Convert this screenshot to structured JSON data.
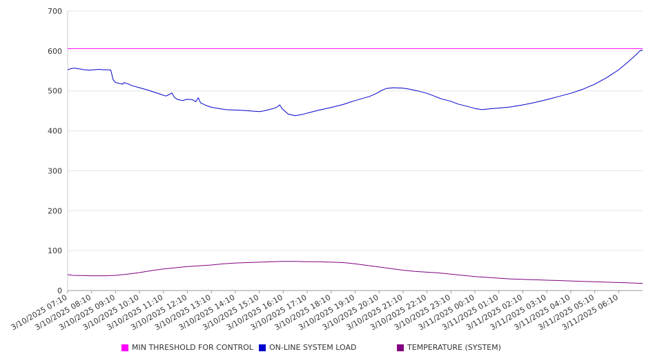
{
  "chart_data": {
    "type": "line",
    "title": "",
    "xlabel": "",
    "ylabel": "",
    "ylim": [
      0,
      700
    ],
    "yticks": [
      0,
      100,
      200,
      300,
      400,
      500,
      600,
      700
    ],
    "grid": true,
    "legend_position": "bottom",
    "x_tick_labels": [
      "3/10/2025 07:10",
      "3/10/2025 08:10",
      "3/10/2025 09:10",
      "3/10/2025 10:10",
      "3/10/2025 11:10",
      "3/10/2025 12:10",
      "3/10/2025 13:10",
      "3/10/2025 14:10",
      "3/10/2025 15:10",
      "3/10/2025 16:10",
      "3/10/2025 17:10",
      "3/10/2025 18:10",
      "3/10/2025 19:10",
      "3/10/2025 20:10",
      "3/10/2025 21:10",
      "3/10/2025 22:10",
      "3/10/2025 23:10",
      "3/11/2025 00:10",
      "3/11/2025 01:10",
      "3/11/2025 02:10",
      "3/11/2025 03:10",
      "3/11/2025 04:10",
      "3/11/2025 05:10",
      "3/11/2025 06:10"
    ],
    "x_range_hours": [
      0,
      24
    ],
    "series": [
      {
        "name": "MIN THRESHOLD FOR CONTROL",
        "color": "#ff00ff",
        "points": [
          [
            0,
            606
          ],
          [
            24,
            606
          ]
        ]
      },
      {
        "name": "ON-LINE SYSTEM LOAD",
        "color": "#0000cc",
        "points": [
          [
            0,
            553
          ],
          [
            0.15,
            556
          ],
          [
            0.3,
            557
          ],
          [
            0.5,
            555
          ],
          [
            0.7,
            553
          ],
          [
            0.9,
            552
          ],
          [
            1.1,
            553
          ],
          [
            1.3,
            554
          ],
          [
            1.5,
            553
          ],
          [
            1.7,
            553
          ],
          [
            1.8,
            552
          ],
          [
            1.85,
            540
          ],
          [
            1.9,
            528
          ],
          [
            2.0,
            521
          ],
          [
            2.2,
            518
          ],
          [
            2.3,
            517
          ],
          [
            2.35,
            521
          ],
          [
            2.5,
            518
          ],
          [
            2.7,
            513
          ],
          [
            3.0,
            508
          ],
          [
            3.3,
            503
          ],
          [
            3.6,
            497
          ],
          [
            3.9,
            491
          ],
          [
            4.1,
            487
          ],
          [
            4.2,
            490
          ],
          [
            4.3,
            493
          ],
          [
            4.35,
            495
          ],
          [
            4.45,
            484
          ],
          [
            4.6,
            478
          ],
          [
            4.8,
            476
          ],
          [
            5.0,
            479
          ],
          [
            5.2,
            478
          ],
          [
            5.35,
            473
          ],
          [
            5.45,
            483
          ],
          [
            5.55,
            470
          ],
          [
            5.8,
            463
          ],
          [
            6.0,
            459
          ],
          [
            6.3,
            456
          ],
          [
            6.6,
            453
          ],
          [
            7.0,
            452
          ],
          [
            7.4,
            451
          ],
          [
            7.8,
            449
          ],
          [
            8.0,
            448
          ],
          [
            8.2,
            450
          ],
          [
            8.4,
            453
          ],
          [
            8.6,
            456
          ],
          [
            8.75,
            460
          ],
          [
            8.85,
            465
          ],
          [
            8.95,
            456
          ],
          [
            9.2,
            442
          ],
          [
            9.5,
            438
          ],
          [
            9.8,
            441
          ],
          [
            10.1,
            446
          ],
          [
            10.5,
            452
          ],
          [
            10.8,
            456
          ],
          [
            11.1,
            460
          ],
          [
            11.5,
            466
          ],
          [
            11.9,
            474
          ],
          [
            12.3,
            481
          ],
          [
            12.6,
            486
          ],
          [
            12.9,
            494
          ],
          [
            13.1,
            501
          ],
          [
            13.3,
            506
          ],
          [
            13.6,
            508
          ],
          [
            14.0,
            507
          ],
          [
            14.3,
            504
          ],
          [
            14.6,
            500
          ],
          [
            15.0,
            494
          ],
          [
            15.3,
            487
          ],
          [
            15.6,
            480
          ],
          [
            16.0,
            474
          ],
          [
            16.3,
            467
          ],
          [
            16.7,
            461
          ],
          [
            17.0,
            456
          ],
          [
            17.3,
            453
          ],
          [
            17.6,
            455
          ],
          [
            18.0,
            457
          ],
          [
            18.5,
            460
          ],
          [
            19.0,
            465
          ],
          [
            19.5,
            471
          ],
          [
            20.0,
            478
          ],
          [
            20.5,
            486
          ],
          [
            21.0,
            494
          ],
          [
            21.5,
            504
          ],
          [
            22.0,
            517
          ],
          [
            22.5,
            533
          ],
          [
            23.0,
            553
          ],
          [
            23.4,
            573
          ],
          [
            23.75,
            592
          ],
          [
            23.9,
            601
          ],
          [
            24,
            602
          ]
        ]
      },
      {
        "name": "TEMPERATURE (SYSTEM)",
        "color": "#800080",
        "points": [
          [
            0,
            40
          ],
          [
            0.2,
            38
          ],
          [
            1.0,
            37
          ],
          [
            1.6,
            37
          ],
          [
            2.0,
            38
          ],
          [
            2.5,
            41
          ],
          [
            3.0,
            45
          ],
          [
            3.5,
            50
          ],
          [
            4.0,
            54
          ],
          [
            4.5,
            57
          ],
          [
            5.0,
            60
          ],
          [
            5.5,
            62
          ],
          [
            6.0,
            64
          ],
          [
            6.5,
            67
          ],
          [
            7.0,
            69
          ],
          [
            7.5,
            70
          ],
          [
            8.0,
            71
          ],
          [
            8.5,
            72
          ],
          [
            9.0,
            73
          ],
          [
            9.5,
            73
          ],
          [
            10.0,
            72
          ],
          [
            10.5,
            72
          ],
          [
            11.0,
            71
          ],
          [
            11.5,
            70
          ],
          [
            12.0,
            67
          ],
          [
            12.5,
            63
          ],
          [
            13.0,
            59
          ],
          [
            13.5,
            55
          ],
          [
            14.0,
            51
          ],
          [
            14.5,
            48
          ],
          [
            15.0,
            46
          ],
          [
            15.5,
            44
          ],
          [
            16.0,
            41
          ],
          [
            16.5,
            38
          ],
          [
            17.0,
            35
          ],
          [
            17.5,
            33
          ],
          [
            18.0,
            31
          ],
          [
            18.5,
            29
          ],
          [
            19.0,
            28
          ],
          [
            19.5,
            27
          ],
          [
            20.0,
            26
          ],
          [
            20.5,
            25
          ],
          [
            21.0,
            24
          ],
          [
            21.5,
            23
          ],
          [
            22.0,
            22
          ],
          [
            22.5,
            21
          ],
          [
            23.0,
            20
          ],
          [
            23.5,
            19
          ],
          [
            24,
            18
          ]
        ]
      }
    ]
  }
}
